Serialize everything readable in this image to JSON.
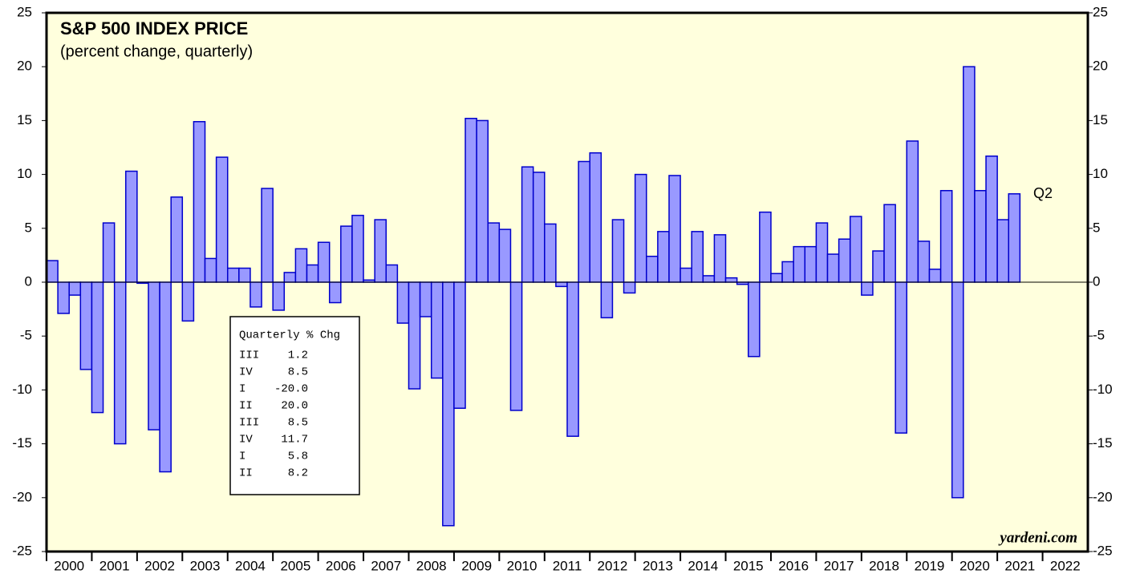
{
  "chart_data": {
    "type": "bar",
    "title": "S&P 500 INDEX PRICE",
    "subtitle": "(percent change, quarterly)",
    "annotation": "Q2",
    "source": "yardeni.com",
    "color": "#9999ff",
    "edge_color": "#0000cc",
    "background": "#ffffdd",
    "x": [
      2000,
      2000.25,
      2000.5,
      2000.75,
      2001,
      2001.25,
      2001.5,
      2001.75,
      2002,
      2002.25,
      2002.5,
      2002.75,
      2003,
      2003.25,
      2003.5,
      2003.75,
      2004,
      2004.25,
      2004.5,
      2004.75,
      2005,
      2005.25,
      2005.5,
      2005.75,
      2006,
      2006.25,
      2006.5,
      2006.75,
      2007,
      2007.25,
      2007.5,
      2007.75,
      2008,
      2008.25,
      2008.5,
      2008.75,
      2009,
      2009.25,
      2009.5,
      2009.75,
      2010,
      2010.25,
      2010.5,
      2010.75,
      2011,
      2011.25,
      2011.5,
      2011.75,
      2012,
      2012.25,
      2012.5,
      2012.75,
      2013,
      2013.25,
      2013.5,
      2013.75,
      2014,
      2014.25,
      2014.5,
      2014.75,
      2015,
      2015.25,
      2015.5,
      2015.75,
      2016,
      2016.25,
      2016.5,
      2016.75,
      2017,
      2017.25,
      2017.5,
      2017.75,
      2018,
      2018.25,
      2018.5,
      2018.75,
      2019,
      2019.25,
      2019.5,
      2019.75,
      2020,
      2020.25,
      2020.5,
      2020.75,
      2021,
      2021.25
    ],
    "values": [
      2.0,
      -2.9,
      -1.2,
      -8.1,
      -12.1,
      5.5,
      -15.0,
      10.3,
      -0.1,
      -13.7,
      -17.6,
      7.9,
      -3.6,
      14.9,
      2.2,
      11.6,
      1.3,
      1.3,
      -2.3,
      8.7,
      -2.6,
      0.9,
      3.1,
      1.6,
      3.7,
      -1.9,
      5.2,
      6.2,
      0.2,
      5.8,
      1.6,
      -3.8,
      -9.9,
      -3.2,
      -8.9,
      -22.6,
      -11.7,
      15.2,
      15.0,
      5.5,
      4.9,
      -11.9,
      10.7,
      10.2,
      5.4,
      -0.4,
      -14.3,
      11.2,
      12.0,
      -3.3,
      5.8,
      -1.0,
      10.0,
      2.4,
      4.7,
      9.9,
      1.3,
      4.7,
      0.6,
      4.4,
      0.4,
      -0.2,
      -6.9,
      6.5,
      0.8,
      1.9,
      3.3,
      3.3,
      5.5,
      2.6,
      4.0,
      6.1,
      -1.2,
      2.9,
      7.2,
      -14.0,
      13.1,
      3.8,
      1.2,
      8.5,
      -20.0,
      20.0,
      8.5,
      11.7,
      5.8,
      8.2
    ],
    "xlim": [
      2000,
      2023
    ],
    "xticks": [
      2000,
      2001,
      2002,
      2003,
      2004,
      2005,
      2006,
      2007,
      2008,
      2009,
      2010,
      2011,
      2012,
      2013,
      2014,
      2015,
      2016,
      2017,
      2018,
      2019,
      2020,
      2021,
      2022
    ],
    "ylim": [
      -25,
      25
    ],
    "yticks": [
      -25,
      -20,
      -15,
      -10,
      -5,
      0,
      5,
      10,
      15,
      20,
      25
    ],
    "inset": {
      "title": "Quarterly % Chg",
      "rows": [
        [
          "III",
          "1.2"
        ],
        [
          "IV",
          "8.5"
        ],
        [
          "I",
          "-20.0"
        ],
        [
          "II",
          "20.0"
        ],
        [
          "III",
          "8.5"
        ],
        [
          "IV",
          "11.7"
        ],
        [
          "I",
          "5.8"
        ],
        [
          "II",
          "8.2"
        ]
      ]
    }
  }
}
